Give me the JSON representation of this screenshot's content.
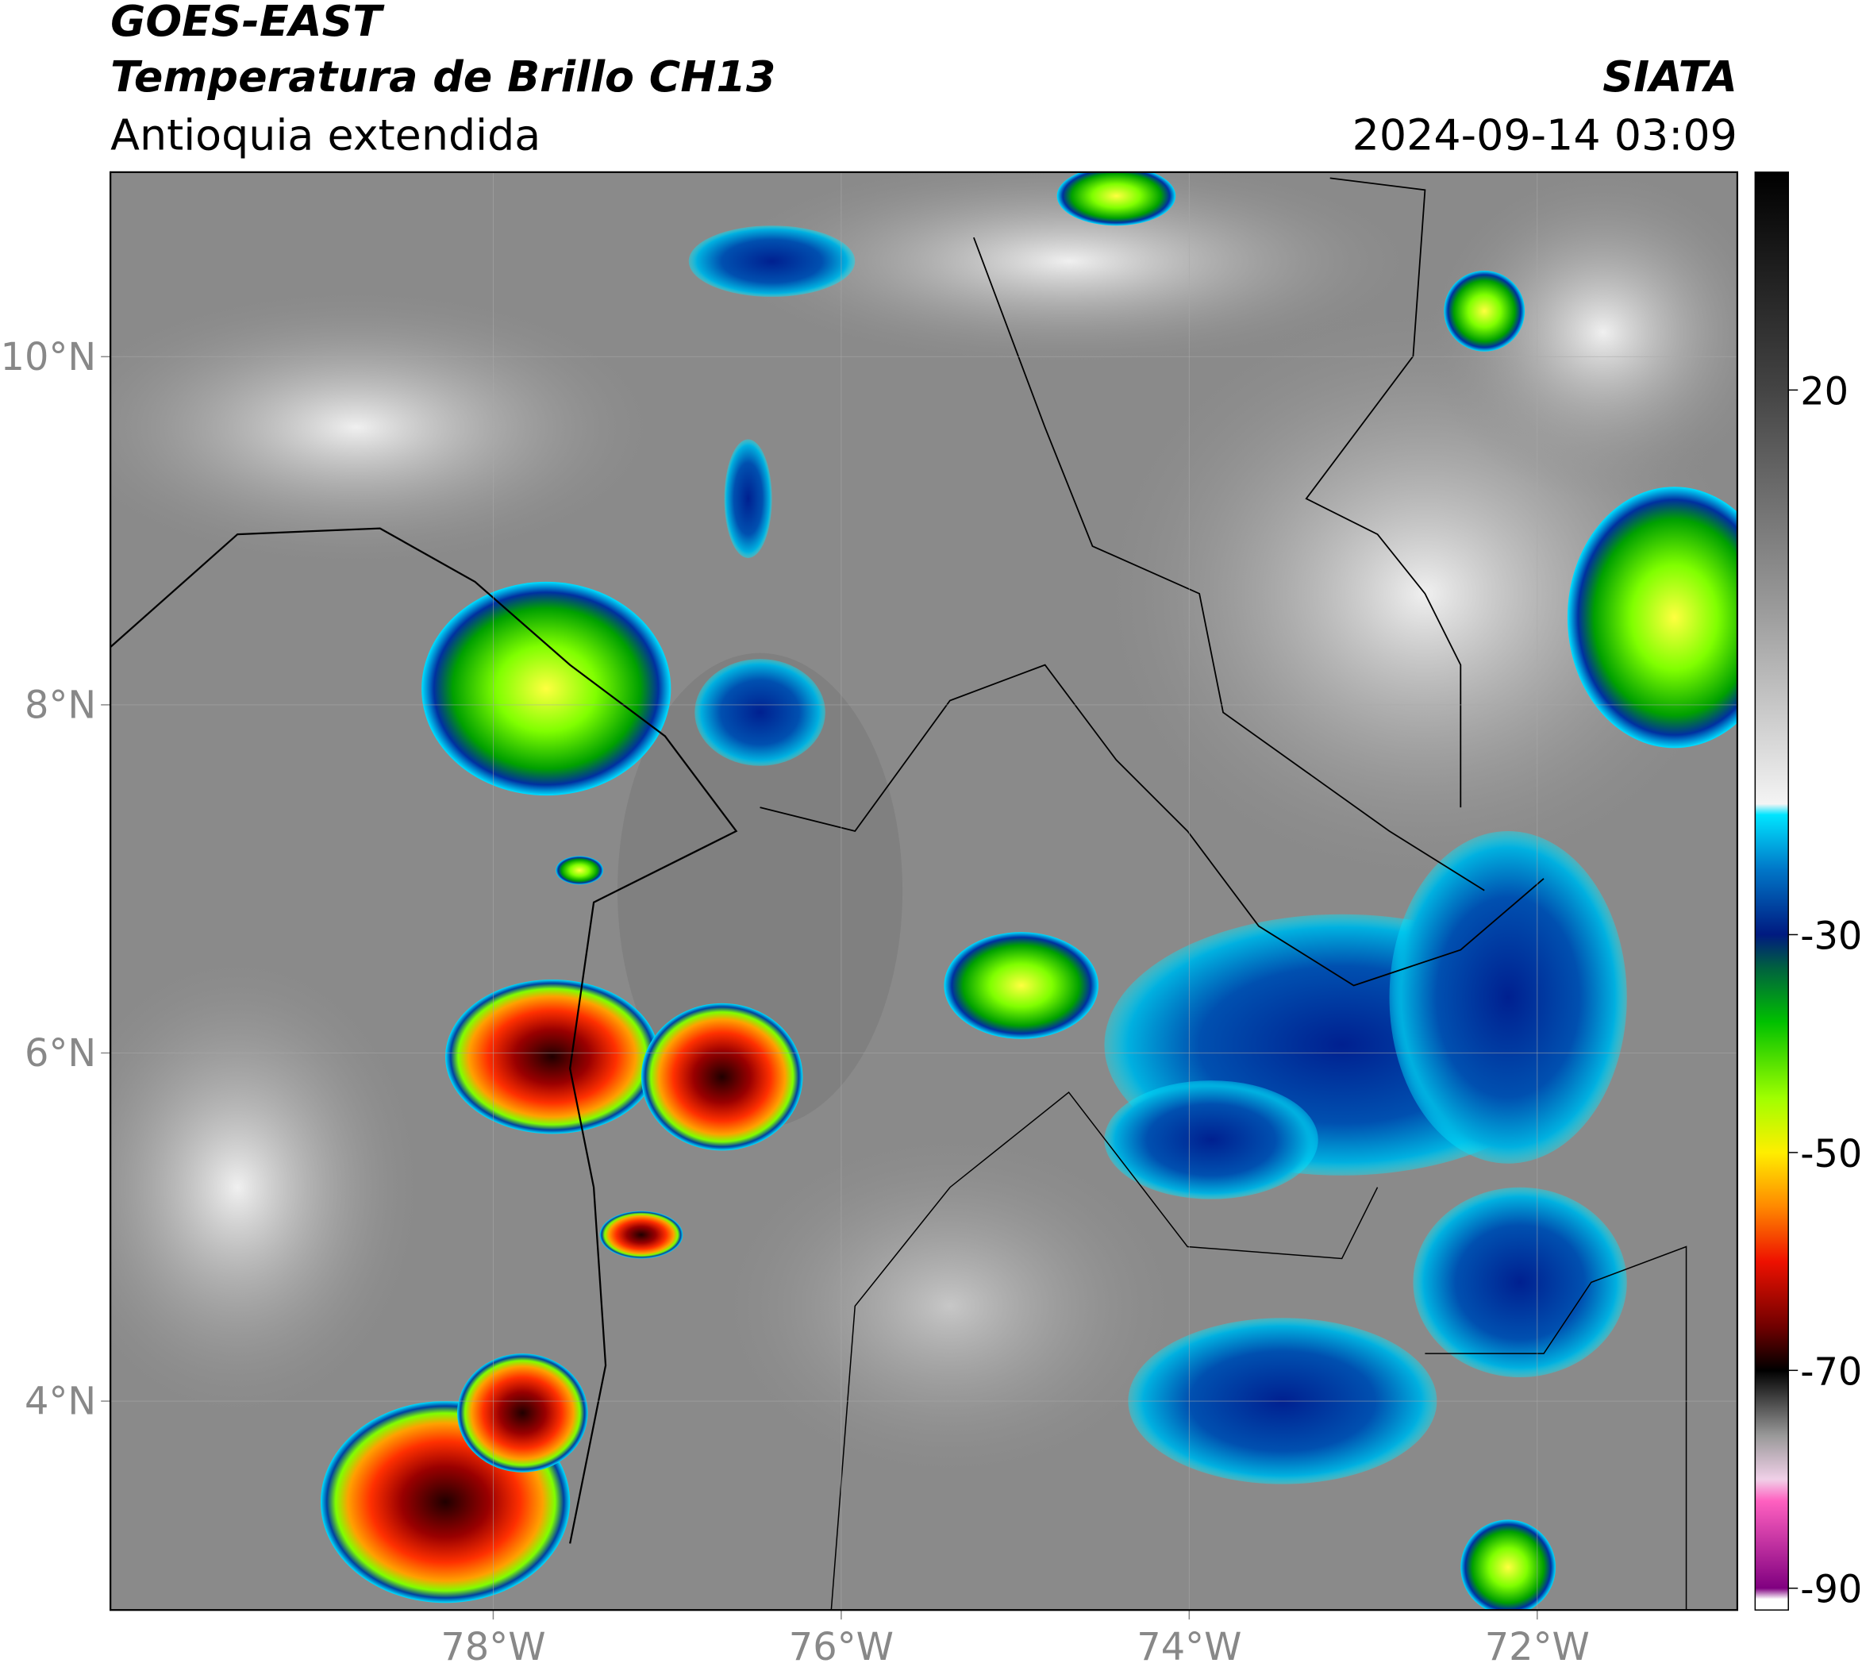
{
  "header": {
    "title": "GOES-EAST",
    "subtitle": "Temperatura de Brillo CH13",
    "region": "Antioquia extendida",
    "source": "SIATA",
    "datetime": "2024-09-14 03:09"
  },
  "map": {
    "lonlim": [
      -80.2,
      -70.85
    ],
    "latlim": [
      2.8,
      11.06
    ],
    "lat_ticks": [
      {
        "value": 10,
        "label": "10°N"
      },
      {
        "value": 8,
        "label": "8°N"
      },
      {
        "value": 6,
        "label": "6°N"
      },
      {
        "value": 4,
        "label": "4°N"
      }
    ],
    "lon_ticks": [
      {
        "value": -78,
        "label": "78°W"
      },
      {
        "value": -76,
        "label": "76°W"
      },
      {
        "value": -74,
        "label": "74°W"
      },
      {
        "value": -72,
        "label": "72°W"
      }
    ],
    "grid": true
  },
  "colorbar": {
    "lim": [
      -92,
      40
    ],
    "ticks": [
      20,
      -30,
      -50,
      -70,
      -90
    ],
    "colormap": [
      [
        40,
        "#000000"
      ],
      [
        20,
        "#444444"
      ],
      [
        0,
        "#9a9a9a"
      ],
      [
        -18,
        "#f4f4f4"
      ],
      [
        -19,
        "#00e5ff"
      ],
      [
        -24,
        "#0077c8"
      ],
      [
        -30,
        "#001a80"
      ],
      [
        -33,
        "#006040"
      ],
      [
        -38,
        "#00c000"
      ],
      [
        -45,
        "#a0ff00"
      ],
      [
        -50,
        "#ffee00"
      ],
      [
        -55,
        "#ff8800"
      ],
      [
        -60,
        "#ee1100"
      ],
      [
        -66,
        "#700000"
      ],
      [
        -70,
        "#000000"
      ],
      [
        -76,
        "#999999"
      ],
      [
        -80,
        "#f0d0e8"
      ],
      [
        -82,
        "#ff60c0"
      ],
      [
        -90,
        "#800080"
      ],
      [
        -91,
        "#ffffff"
      ]
    ]
  }
}
